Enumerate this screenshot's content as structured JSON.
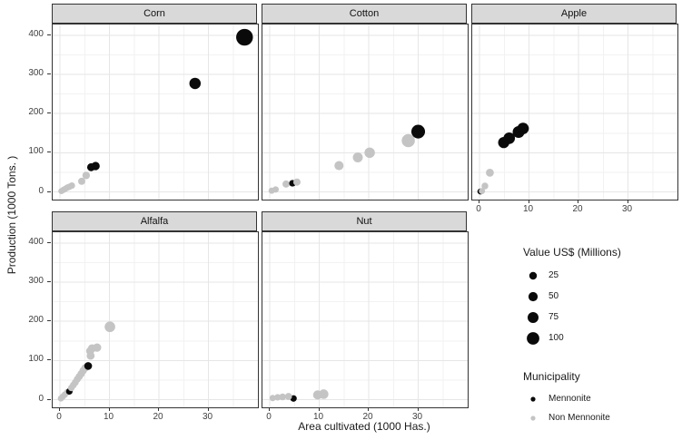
{
  "chart_data": {
    "type": "scatter",
    "title": "",
    "xlabel": "Area cultivated (1000 Has.)",
    "ylabel": "Production (1000 Tons. )",
    "x_ticks": [
      0,
      10,
      20,
      30
    ],
    "y_ticks": [
      0,
      100,
      200,
      300,
      400
    ],
    "x_minor_ticks": [
      5,
      15,
      25,
      35
    ],
    "y_minor_ticks": [
      50,
      150,
      250,
      350
    ],
    "xlim": [
      -1.5,
      40
    ],
    "ylim": [
      -12,
      418
    ],
    "grid": "major+minor",
    "legend_position": "right",
    "size_scale": {
      "title": "Value US$ (Millions)",
      "breaks": [
        25,
        50,
        75,
        100
      ]
    },
    "color_scale": {
      "title": "Municipality",
      "items": [
        {
          "label": "Mennonite",
          "color": "#0a0a0a"
        },
        {
          "label": "Non Mennonite",
          "color": "#c4c4c4"
        }
      ]
    },
    "style_colors": {
      "grid_major": "#e6e6e6",
      "grid_minor": "#f2f2f2",
      "strip_bg": "#d9d9d9",
      "panel_border": "#333333",
      "tick_label": "#404040"
    },
    "facets": [
      {
        "label": "Corn",
        "points": [
          {
            "x": 0.3,
            "y": 2,
            "v": 3,
            "g": "N"
          },
          {
            "x": 0.7,
            "y": 5,
            "v": 4,
            "g": "N"
          },
          {
            "x": 1.1,
            "y": 8,
            "v": 5,
            "g": "N"
          },
          {
            "x": 1.5,
            "y": 11,
            "v": 6,
            "g": "N"
          },
          {
            "x": 1.9,
            "y": 13,
            "v": 7,
            "g": "N"
          },
          {
            "x": 2.4,
            "y": 16,
            "v": 8,
            "g": "N"
          },
          {
            "x": 4.4,
            "y": 27,
            "v": 18,
            "g": "N"
          },
          {
            "x": 5.3,
            "y": 42,
            "v": 24,
            "g": "N"
          },
          {
            "x": 6.3,
            "y": 63,
            "v": 30,
            "g": "M"
          },
          {
            "x": 7.2,
            "y": 66,
            "v": 36,
            "g": "M"
          },
          {
            "x": 27.3,
            "y": 277,
            "v": 82,
            "g": "M"
          },
          {
            "x": 37.3,
            "y": 395,
            "v": 165,
            "g": "M"
          }
        ]
      },
      {
        "label": "Cotton",
        "points": [
          {
            "x": 0.4,
            "y": 3,
            "v": 4,
            "g": "N"
          },
          {
            "x": 1.2,
            "y": 6,
            "v": 6,
            "g": "N"
          },
          {
            "x": 3.3,
            "y": 20,
            "v": 18,
            "g": "N"
          },
          {
            "x": 4.6,
            "y": 22,
            "v": 10,
            "g": "M"
          },
          {
            "x": 5.5,
            "y": 25,
            "v": 20,
            "g": "N"
          },
          {
            "x": 14,
            "y": 67,
            "v": 48,
            "g": "N"
          },
          {
            "x": 17.8,
            "y": 88,
            "v": 60,
            "g": "N"
          },
          {
            "x": 20.2,
            "y": 100,
            "v": 68,
            "g": "N"
          },
          {
            "x": 28,
            "y": 131,
            "v": 110,
            "g": "N"
          },
          {
            "x": 30,
            "y": 154,
            "v": 118,
            "g": "M"
          }
        ]
      },
      {
        "label": "Apple",
        "points": [
          {
            "x": 0.2,
            "y": 1,
            "v": 1,
            "g": "M"
          },
          {
            "x": 0.5,
            "y": 2,
            "v": 3,
            "g": "N"
          },
          {
            "x": 1.1,
            "y": 15,
            "v": 12,
            "g": "N"
          },
          {
            "x": 2.1,
            "y": 49,
            "v": 30,
            "g": "N"
          },
          {
            "x": 4.9,
            "y": 126,
            "v": 80,
            "g": "M"
          },
          {
            "x": 6.0,
            "y": 137,
            "v": 85,
            "g": "M"
          },
          {
            "x": 7.9,
            "y": 153,
            "v": 90,
            "g": "M"
          },
          {
            "x": 8.8,
            "y": 162,
            "v": 85,
            "g": "M"
          }
        ]
      },
      {
        "label": "Alfalfa",
        "points": [
          {
            "x": 0.2,
            "y": 3,
            "v": 4,
            "g": "N"
          },
          {
            "x": 0.6,
            "y": 8,
            "v": 5,
            "g": "N"
          },
          {
            "x": 1.0,
            "y": 13,
            "v": 6,
            "g": "N"
          },
          {
            "x": 1.5,
            "y": 19,
            "v": 8,
            "g": "N"
          },
          {
            "x": 1.9,
            "y": 21,
            "v": 8,
            "g": "M"
          },
          {
            "x": 2.3,
            "y": 30,
            "v": 10,
            "g": "N"
          },
          {
            "x": 2.7,
            "y": 37,
            "v": 12,
            "g": "N"
          },
          {
            "x": 3.1,
            "y": 44,
            "v": 14,
            "g": "N"
          },
          {
            "x": 3.5,
            "y": 52,
            "v": 16,
            "g": "N"
          },
          {
            "x": 3.9,
            "y": 59,
            "v": 18,
            "g": "N"
          },
          {
            "x": 4.3,
            "y": 66,
            "v": 20,
            "g": "N"
          },
          {
            "x": 4.7,
            "y": 74,
            "v": 22,
            "g": "N"
          },
          {
            "x": 5.1,
            "y": 81,
            "v": 25,
            "g": "N"
          },
          {
            "x": 5.7,
            "y": 86,
            "v": 28,
            "g": "M"
          },
          {
            "x": 6.2,
            "y": 112,
            "v": 30,
            "g": "N"
          },
          {
            "x": 6.1,
            "y": 124,
            "v": 32,
            "g": "N"
          },
          {
            "x": 6.5,
            "y": 131,
            "v": 34,
            "g": "N"
          },
          {
            "x": 7.5,
            "y": 133,
            "v": 36,
            "g": "N"
          },
          {
            "x": 10.1,
            "y": 186,
            "v": 70,
            "g": "N"
          }
        ]
      },
      {
        "label": "Nut",
        "points": [
          {
            "x": 0.6,
            "y": 4,
            "v": 5,
            "g": "N"
          },
          {
            "x": 1.6,
            "y": 6,
            "v": 8,
            "g": "N"
          },
          {
            "x": 2.6,
            "y": 7,
            "v": 12,
            "g": "N"
          },
          {
            "x": 4.8,
            "y": 3,
            "v": 9,
            "g": "M"
          },
          {
            "x": 3.8,
            "y": 8,
            "v": 16,
            "g": "N"
          },
          {
            "x": 9.7,
            "y": 12,
            "v": 50,
            "g": "N"
          },
          {
            "x": 10.9,
            "y": 14,
            "v": 55,
            "g": "N"
          }
        ]
      }
    ]
  }
}
